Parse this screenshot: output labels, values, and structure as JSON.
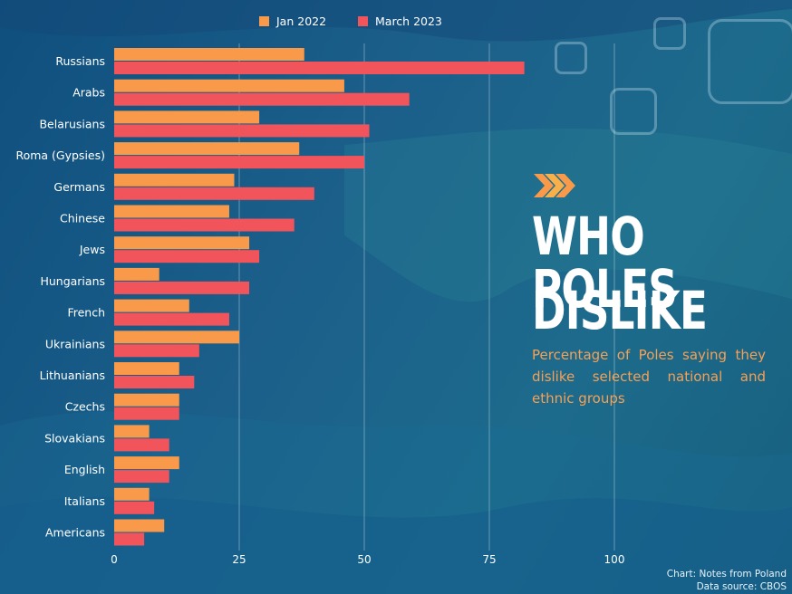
{
  "colors": {
    "jan2022": "#f99a4b",
    "mar2023": "#f2545b",
    "grid": "rgba(255,255,255,0.35)",
    "accent": "#f7a055"
  },
  "title_lines": [
    "WHO POLES",
    "DISLIKE"
  ],
  "subtitle": "Percentage of Poles saying they dislike selected national and ethnic groups",
  "source_line1": "Chart: Notes from Poland",
  "source_line2": "Data source: CBOS",
  "decor_icon": "triple-chevron-right-icon",
  "chart_data": {
    "type": "bar",
    "orientation": "horizontal",
    "categories": [
      "Russians",
      "Arabs",
      "Belarusians",
      "Roma (Gypsies)",
      "Germans",
      "Chinese",
      "Jews",
      "Hungarians",
      "French",
      "Ukrainians",
      "Lithuanians",
      "Czechs",
      "Slovakians",
      "English",
      "Italians",
      "Americans"
    ],
    "series": [
      {
        "name": "Jan 2022",
        "values": [
          38,
          46,
          29,
          37,
          24,
          23,
          27,
          9,
          15,
          25,
          13,
          13,
          7,
          13,
          7,
          10
        ]
      },
      {
        "name": "March 2023",
        "values": [
          82,
          59,
          51,
          50,
          40,
          36,
          29,
          27,
          23,
          17,
          16,
          13,
          11,
          11,
          8,
          6
        ]
      }
    ],
    "xlim": [
      0,
      100
    ],
    "xticks": [
      0,
      25,
      50,
      75,
      100
    ],
    "grid": true,
    "legend_position": "top"
  }
}
